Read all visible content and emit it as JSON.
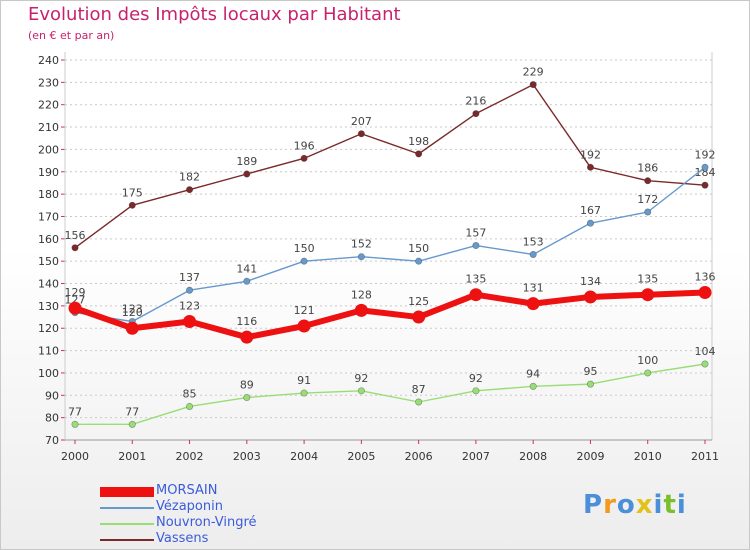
{
  "header": {
    "title": "Evolution des Impôts locaux par Habitant",
    "subtitle": "(en € et par an)"
  },
  "logo": {
    "text": "Proxiti",
    "colors": [
      "#4a8fd8",
      "#f29a1f",
      "#4a8fd8",
      "#e2c118",
      "#4a8fd8",
      "#7bbf2a",
      "#4a8fd8"
    ]
  },
  "chart_data": {
    "type": "line",
    "x": [
      "2000",
      "2001",
      "2002",
      "2003",
      "2004",
      "2005",
      "2006",
      "2007",
      "2008",
      "2009",
      "2010",
      "2011"
    ],
    "ylim": [
      70,
      240
    ],
    "yticks": [
      70,
      80,
      90,
      100,
      110,
      120,
      130,
      140,
      150,
      160,
      170,
      180,
      190,
      200,
      210,
      220,
      230,
      240
    ],
    "grid": "horizontal-dotted",
    "legend_position": "bottom-left",
    "series": [
      {
        "name": "MORSAIN",
        "color": "#ee1111",
        "values": [
          129,
          120,
          123,
          116,
          121,
          128,
          125,
          135,
          131,
          134,
          135,
          136
        ]
      },
      {
        "name": "Vézaponin",
        "color": "#6699cc",
        "values": [
          127,
          123,
          137,
          141,
          150,
          152,
          150,
          157,
          153,
          167,
          172,
          192
        ]
      },
      {
        "name": "Nouvron-Vingré",
        "color": "#99dd77",
        "values": [
          77,
          77,
          85,
          89,
          91,
          92,
          87,
          92,
          94,
          95,
          100,
          104
        ]
      },
      {
        "name": "Vassens",
        "color": "#7a2a2a",
        "values": [
          156,
          175,
          182,
          189,
          196,
          207,
          198,
          216,
          229,
          192,
          186,
          184
        ]
      }
    ]
  }
}
